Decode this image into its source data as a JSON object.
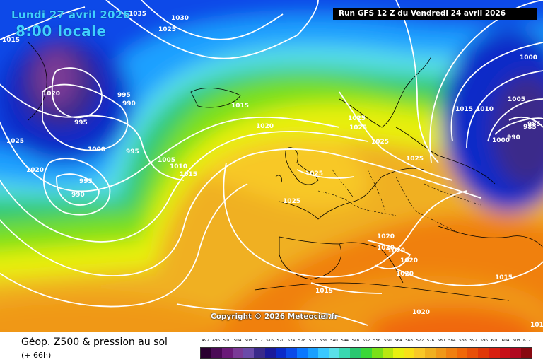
{
  "header": {
    "date": "Lundi 27 avril 2026",
    "time": "8:00 locale",
    "run": "Run GFS 12 Z du Vendredi 24 avril 2026"
  },
  "copyright": "Copyright © 2026 Meteociel.fr",
  "footer": {
    "title": "Géop. Z500 & pression au sol",
    "hours": "(+ 66h)"
  },
  "isobar_labels": [
    "1015",
    "1035",
    "1030",
    "1025",
    "1020",
    "995",
    "990",
    "985",
    "995",
    "1025",
    "1020",
    "1000",
    "995",
    "995",
    "990",
    "1005",
    "1010",
    "1015",
    "1015",
    "1020",
    "1025",
    "1025",
    "1025",
    "1025",
    "1025",
    "1025",
    "1000",
    "1005",
    "1015",
    "1010",
    "990",
    "1000",
    "985",
    "1020",
    "1020",
    "1020",
    "1020",
    "1015",
    "1020",
    "1010",
    "1015",
    "1015",
    "1015",
    "1015"
  ],
  "legend": {
    "values": [
      "492",
      "496",
      "500",
      "504",
      "508",
      "512",
      "516",
      "520",
      "524",
      "528",
      "532",
      "536",
      "540",
      "544",
      "548",
      "552",
      "556",
      "560",
      "564",
      "568",
      "572",
      "576",
      "580",
      "584",
      "588",
      "592",
      "596",
      "600",
      "604",
      "608",
      "612"
    ],
    "colors": [
      "#2a0030",
      "#4a0a55",
      "#6a1a78",
      "#7a3a96",
      "#6a4aa8",
      "#3a2a8a",
      "#1a1a9a",
      "#0a2ac8",
      "#0a4ae8",
      "#0a78ff",
      "#1aa0ff",
      "#3ac8ff",
      "#5ae0e8",
      "#3ad8b0",
      "#2ac870",
      "#3ad838",
      "#7ae018",
      "#b8e810",
      "#e8f010",
      "#f8e018",
      "#f8c828",
      "#f0b020",
      "#f09818",
      "#f08010",
      "#f06808",
      "#e85008",
      "#e03808",
      "#d82010",
      "#c81018",
      "#b00820",
      "#880810"
    ]
  }
}
